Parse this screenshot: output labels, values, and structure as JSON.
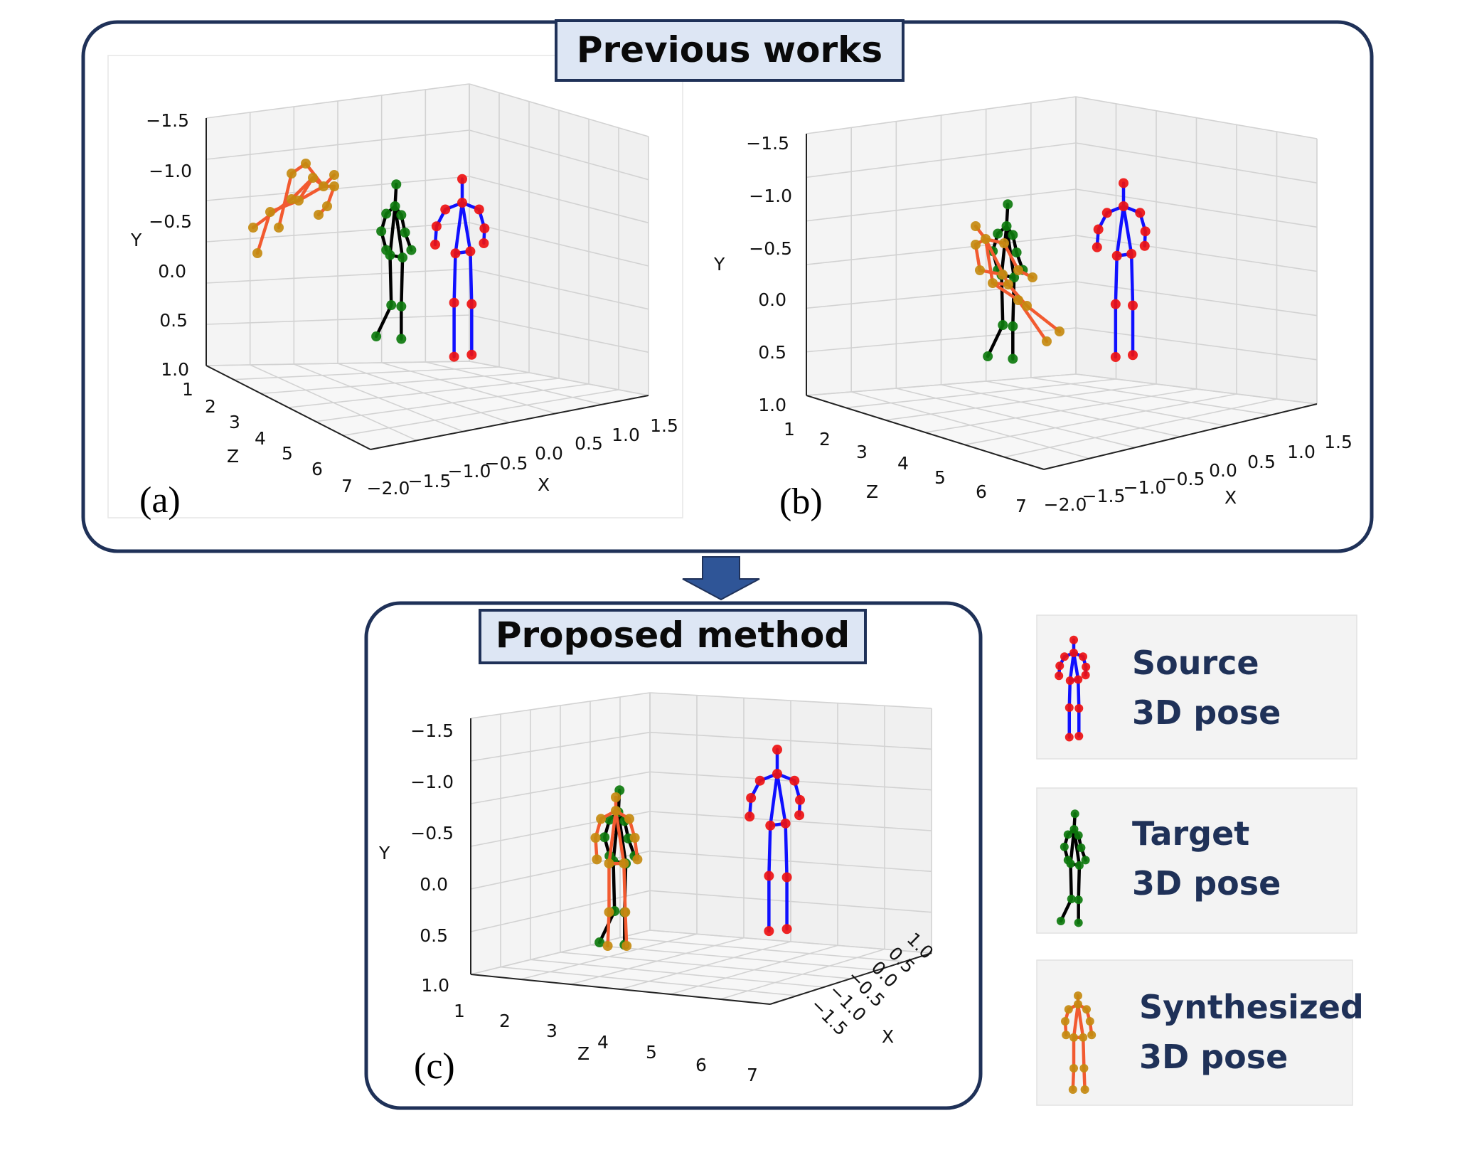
{
  "colors": {
    "box_border": "#1f3158",
    "title_fill": "#dde6f4",
    "arrow": "#2f5597",
    "source_limb": "#1010ff",
    "source_joint": "#ee1111",
    "target_limb": "#000000",
    "target_joint": "#0d7a0d",
    "synth_limb": "#f25a30",
    "synth_joint": "#c48a10",
    "legend_text": "#1f3158"
  },
  "previous_box": {
    "title": "Previous works"
  },
  "proposed_box": {
    "title": "Proposed method"
  },
  "panels": [
    {
      "letter": "(a)",
      "y_axis_label": "Y",
      "z_axis_label": "Z",
      "x_axis_label": "X",
      "y_ticks": [
        "−1.5",
        "−1.0",
        "−0.5",
        "0.0",
        "0.5",
        "1.0"
      ],
      "z_ticks": [
        "1",
        "2",
        "3",
        "4",
        "5",
        "6",
        "7"
      ],
      "x_ticks": [
        "−2.0",
        "−1.5",
        "−1.0",
        "−0.5",
        "0.0",
        "0.5",
        "1.0",
        "1.5"
      ]
    },
    {
      "letter": "(b)",
      "y_axis_label": "Y",
      "z_axis_label": "Z",
      "x_axis_label": "X",
      "y_ticks": [
        "−1.5",
        "−1.0",
        "−0.5",
        "0.0",
        "0.5",
        "1.0"
      ],
      "z_ticks": [
        "1",
        "2",
        "3",
        "4",
        "5",
        "6",
        "7"
      ],
      "x_ticks": [
        "−2.0",
        "−1.5",
        "−1.0",
        "−0.5",
        "0.0",
        "0.5",
        "1.0",
        "1.5"
      ]
    },
    {
      "letter": "(c)",
      "y_axis_label": "Y",
      "z_axis_label": "Z",
      "x_axis_label": "X",
      "y_ticks": [
        "−1.5",
        "−1.0",
        "−0.5",
        "0.0",
        "0.5",
        "1.0"
      ],
      "z_ticks": [
        "1",
        "2",
        "3",
        "4",
        "5",
        "6",
        "7"
      ],
      "x_ticks": [
        "−1.5",
        "−1.0",
        "−0.5",
        "0.0",
        "0.5",
        "1.0"
      ]
    }
  ],
  "legend": [
    {
      "key": "source",
      "line1": "Source",
      "line2": "3D pose"
    },
    {
      "key": "target",
      "line1": "Target",
      "line2": "3D pose"
    },
    {
      "key": "synth",
      "line1": "Synthesized",
      "line2": "3D pose"
    }
  ]
}
